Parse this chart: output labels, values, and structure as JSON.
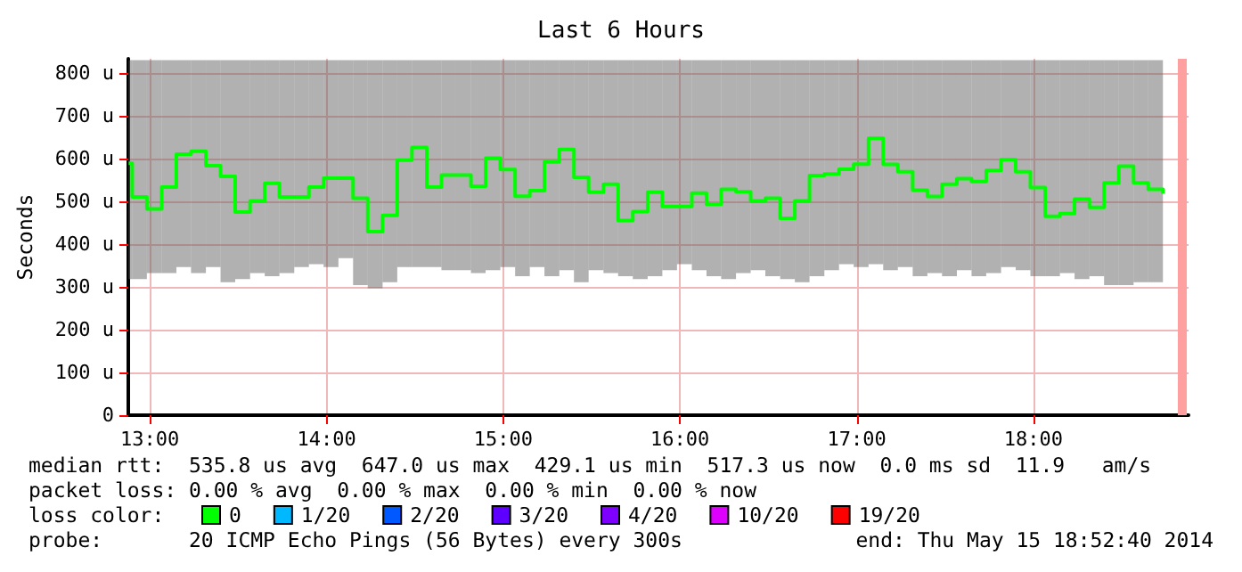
{
  "chart_data": {
    "type": "step",
    "title": "Last 6 Hours",
    "ylabel": "Seconds",
    "legend_title": "loss color:",
    "xlim": [
      12.878,
      18.878
    ],
    "ylim": [
      0,
      833
    ],
    "xticks": [
      {
        "value": 13,
        "label": "13:00"
      },
      {
        "value": 14,
        "label": "14:00"
      },
      {
        "value": 15,
        "label": "15:00"
      },
      {
        "value": 16,
        "label": "16:00"
      },
      {
        "value": 17,
        "label": "17:00"
      },
      {
        "value": 18,
        "label": "18:00"
      }
    ],
    "yticks": [
      0,
      {
        "value": 100,
        "label": "100 u"
      },
      {
        "value": 200,
        "label": "200 u"
      },
      {
        "value": 300,
        "label": "300 u"
      },
      {
        "value": 400,
        "label": "400 u"
      },
      {
        "value": 500,
        "label": "500 u"
      },
      {
        "value": 600,
        "label": "600 u"
      },
      {
        "value": 700,
        "label": "700 u"
      },
      {
        "value": 800,
        "label": "800 u"
      }
    ],
    "grid": true,
    "legend": "bottom",
    "x": [
      12.88,
      12.9,
      12.983,
      13.067,
      13.15,
      13.233,
      13.317,
      13.4,
      13.483,
      13.567,
      13.65,
      13.733,
      13.817,
      13.9,
      13.983,
      14.067,
      14.15,
      14.233,
      14.317,
      14.4,
      14.483,
      14.567,
      14.65,
      14.733,
      14.817,
      14.9,
      14.983,
      15.067,
      15.15,
      15.233,
      15.317,
      15.4,
      15.483,
      15.567,
      15.65,
      15.733,
      15.817,
      15.9,
      15.983,
      16.067,
      16.15,
      16.233,
      16.317,
      16.4,
      16.483,
      16.567,
      16.65,
      16.733,
      16.817,
      16.9,
      16.983,
      17.067,
      17.15,
      17.233,
      17.317,
      17.4,
      17.483,
      17.567,
      17.65,
      17.733,
      17.817,
      17.9,
      17.983,
      18.067,
      18.15,
      18.233,
      18.317,
      18.4,
      18.483,
      18.567,
      18.65,
      18.733
    ],
    "series": [
      {
        "name": "0",
        "color": "#00ff00",
        "values": [
          589,
          510,
          482,
          533,
          610,
          617,
          583,
          558,
          475,
          501,
          542,
          510,
          510,
          533,
          554,
          554,
          507,
          429,
          467,
          596,
          626,
          533,
          561,
          561,
          535,
          601,
          574,
          512,
          525,
          592,
          621,
          556,
          521,
          540,
          455,
          476,
          521,
          488,
          488,
          519,
          493,
          528,
          522,
          501,
          507,
          460,
          501,
          560,
          564,
          575,
          587,
          647,
          586,
          569,
          526,
          511,
          540,
          553,
          546,
          572,
          597,
          569,
          532,
          465,
          471,
          505,
          486,
          543,
          582,
          543,
          528,
          518
        ],
        "lower": [
          318,
          318,
          332,
          332,
          346,
          332,
          346,
          311,
          318,
          332,
          325,
          332,
          346,
          353,
          346,
          367,
          304,
          297,
          311,
          346,
          346,
          346,
          339,
          339,
          332,
          339,
          346,
          325,
          346,
          325,
          339,
          311,
          339,
          332,
          325,
          318,
          325,
          339,
          353,
          339,
          325,
          318,
          332,
          339,
          325,
          318,
          311,
          325,
          339,
          353,
          346,
          353,
          339,
          346,
          325,
          332,
          325,
          339,
          325,
          332,
          346,
          339,
          325,
          325,
          332,
          318,
          325,
          304,
          304,
          311,
          311,
          318
        ],
        "upper": [
          830,
          830,
          830,
          830,
          830,
          830,
          830,
          830,
          830,
          830,
          830,
          830,
          830,
          830,
          830,
          830,
          830,
          830,
          830,
          830,
          830,
          830,
          830,
          830,
          830,
          830,
          830,
          830,
          830,
          830,
          830,
          830,
          830,
          830,
          830,
          830,
          830,
          830,
          830,
          830,
          830,
          830,
          830,
          830,
          830,
          830,
          830,
          830,
          830,
          830,
          830,
          830,
          830,
          830,
          830,
          830,
          830,
          830,
          830,
          830,
          830,
          830,
          830,
          830,
          830,
          830,
          830,
          830,
          830,
          830,
          830,
          830
        ]
      },
      {
        "name": "1/20",
        "color": "#00b8ff",
        "values": [
          null,
          null,
          null,
          null,
          null,
          null,
          null,
          null,
          null,
          null,
          null,
          null,
          null,
          null,
          null,
          null,
          null,
          null,
          null,
          null,
          null,
          null,
          null,
          null,
          null,
          null,
          null,
          null,
          null,
          null,
          null,
          null,
          null,
          null,
          null,
          null,
          null,
          null,
          null,
          null,
          null,
          null,
          null,
          null,
          null,
          null,
          null,
          null,
          null,
          null,
          null,
          null,
          null,
          null,
          null,
          null,
          null,
          null,
          null,
          null,
          null,
          null,
          null,
          null,
          null,
          null,
          null,
          null,
          null,
          null,
          null,
          null
        ]
      },
      {
        "name": "2/20",
        "color": "#0059ff",
        "values": [
          null,
          null,
          null,
          null,
          null,
          null,
          null,
          null,
          null,
          null,
          null,
          null,
          null,
          null,
          null,
          null,
          null,
          null,
          null,
          null,
          null,
          null,
          null,
          null,
          null,
          null,
          null,
          null,
          null,
          null,
          null,
          null,
          null,
          null,
          null,
          null,
          null,
          null,
          null,
          null,
          null,
          null,
          null,
          null,
          null,
          null,
          null,
          null,
          null,
          null,
          null,
          null,
          null,
          null,
          null,
          null,
          null,
          null,
          null,
          null,
          null,
          null,
          null,
          null,
          null,
          null,
          null,
          null,
          null,
          null,
          null,
          null
        ]
      },
      {
        "name": "3/20",
        "color": "#5e00ff",
        "values": [
          null,
          null,
          null,
          null,
          null,
          null,
          null,
          null,
          null,
          null,
          null,
          null,
          null,
          null,
          null,
          null,
          null,
          null,
          null,
          null,
          null,
          null,
          null,
          null,
          null,
          null,
          null,
          null,
          null,
          null,
          null,
          null,
          null,
          null,
          null,
          null,
          null,
          null,
          null,
          null,
          null,
          null,
          null,
          null,
          null,
          null,
          null,
          null,
          null,
          null,
          null,
          null,
          null,
          null,
          null,
          null,
          null,
          null,
          null,
          null,
          null,
          null,
          null,
          null,
          null,
          null,
          null,
          null,
          null,
          null,
          null,
          null
        ]
      },
      {
        "name": "4/20",
        "color": "#7e00ff",
        "values": [
          null,
          null,
          null,
          null,
          null,
          null,
          null,
          null,
          null,
          null,
          null,
          null,
          null,
          null,
          null,
          null,
          null,
          null,
          null,
          null,
          null,
          null,
          null,
          null,
          null,
          null,
          null,
          null,
          null,
          null,
          null,
          null,
          null,
          null,
          null,
          null,
          null,
          null,
          null,
          null,
          null,
          null,
          null,
          null,
          null,
          null,
          null,
          null,
          null,
          null,
          null,
          null,
          null,
          null,
          null,
          null,
          null,
          null,
          null,
          null,
          null,
          null,
          null,
          null,
          null,
          null,
          null,
          null,
          null,
          null,
          null,
          null
        ]
      },
      {
        "name": "10/20",
        "color": "#dd00ff",
        "values": [
          null,
          null,
          null,
          null,
          null,
          null,
          null,
          null,
          null,
          null,
          null,
          null,
          null,
          null,
          null,
          null,
          null,
          null,
          null,
          null,
          null,
          null,
          null,
          null,
          null,
          null,
          null,
          null,
          null,
          null,
          null,
          null,
          null,
          null,
          null,
          null,
          null,
          null,
          null,
          null,
          null,
          null,
          null,
          null,
          null,
          null,
          null,
          null,
          null,
          null,
          null,
          null,
          null,
          null,
          null,
          null,
          null,
          null,
          null,
          null,
          null,
          null,
          null,
          null,
          null,
          null,
          null,
          null,
          null,
          null,
          null,
          null
        ]
      },
      {
        "name": "19/20",
        "color": "#ff0000",
        "values": [
          null,
          null,
          null,
          null,
          null,
          null,
          null,
          null,
          null,
          null,
          null,
          null,
          null,
          null,
          null,
          null,
          null,
          null,
          null,
          null,
          null,
          null,
          null,
          null,
          null,
          null,
          null,
          null,
          null,
          null,
          null,
          null,
          null,
          null,
          null,
          null,
          null,
          null,
          null,
          null,
          null,
          null,
          null,
          null,
          null,
          null,
          null,
          null,
          null,
          null,
          null,
          null,
          null,
          null,
          null,
          null,
          null,
          null,
          null,
          null,
          null,
          null,
          null,
          null,
          null,
          null,
          null,
          null,
          null,
          null,
          null,
          null
        ]
      }
    ],
    "ref_lines": [
      {
        "axis": "x",
        "value": 18.84,
        "color": "#ffa0a0"
      }
    ],
    "annotations": [
      "median rtt:  535.8 us avg  647.0 us max  429.1 us min  517.3 us now  0.0 ms sd  11.9   am/s",
      "packet loss: 0.00 % avg  0.00 % max  0.00 % min  0.00 % now",
      "probe:       20 ICMP Echo Pings (56 Bytes) every 300s",
      "end: Thu May 15 18:52:40 2014"
    ]
  }
}
